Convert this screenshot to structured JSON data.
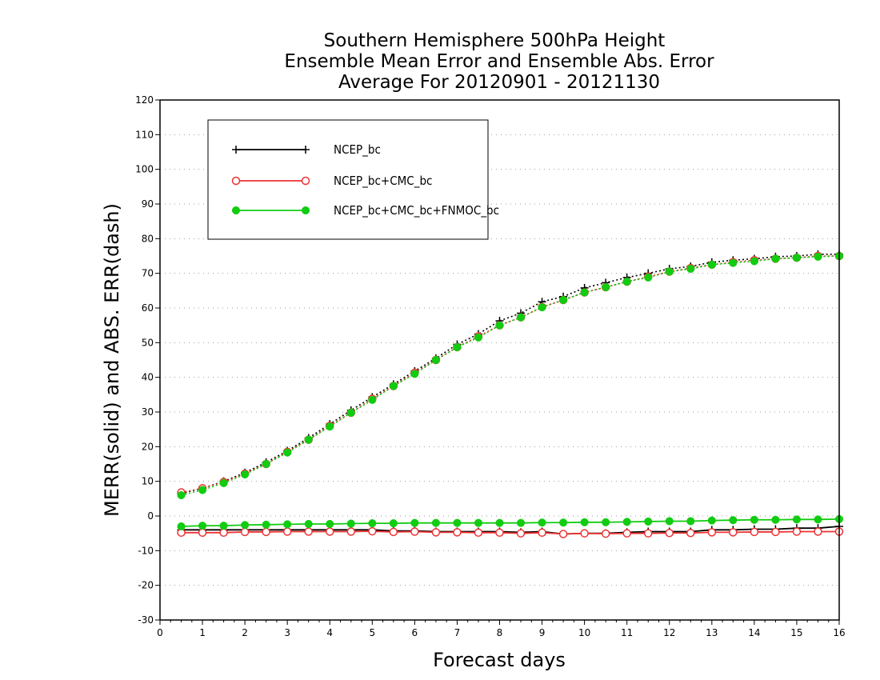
{
  "chart_data": {
    "type": "line",
    "title": [
      "Southern Hemisphere 500hPa Height",
      "Ensemble Mean Error and Ensemble Abs. Error",
      "Average For 20120901 - 20121130"
    ],
    "xlabel": "Forecast days",
    "ylabel": "MERR(solid) and ABS. ERR(dash)",
    "xlim": [
      0,
      16
    ],
    "ylim": [
      -30,
      120
    ],
    "x_ticks": [
      0,
      1,
      2,
      3,
      4,
      5,
      6,
      7,
      8,
      9,
      10,
      11,
      12,
      13,
      14,
      15,
      16
    ],
    "y_ticks": [
      -30,
      -20,
      -10,
      0,
      10,
      20,
      30,
      40,
      50,
      60,
      70,
      80,
      90,
      100,
      110,
      120
    ],
    "grid": "dotted-horizontal",
    "legend_position": "top-left",
    "x": [
      0.5,
      1,
      1.5,
      2,
      2.5,
      3,
      3.5,
      4,
      4.5,
      5,
      5.5,
      6,
      6.5,
      7,
      7.5,
      8,
      8.5,
      9,
      9.5,
      10,
      10.5,
      11,
      11.5,
      12,
      12.5,
      13,
      13.5,
      14,
      14.5,
      15,
      15.5,
      16
    ],
    "series": [
      {
        "name": "NCEP_bc",
        "color": "#000000",
        "marker": "plus",
        "abs_err": [
          6.5,
          8.0,
          10.0,
          12.5,
          15.5,
          18.8,
          22.5,
          26.5,
          30.5,
          34.3,
          38.0,
          41.8,
          45.5,
          49.5,
          52.5,
          56.3,
          58.5,
          61.8,
          63.3,
          65.8,
          67.3,
          68.8,
          70.0,
          71.3,
          72.0,
          73.2,
          73.8,
          74.2,
          74.8,
          75.0,
          75.5,
          75.5
        ],
        "mean_err": [
          -4.0,
          -4.0,
          -4.0,
          -4.0,
          -4.0,
          -4.0,
          -4.0,
          -4.0,
          -4.0,
          -4.0,
          -4.3,
          -4.3,
          -4.5,
          -4.5,
          -4.5,
          -4.5,
          -4.7,
          -4.5,
          -5.2,
          -5.0,
          -5.0,
          -4.7,
          -4.5,
          -4.5,
          -4.5,
          -4.0,
          -4.0,
          -3.8,
          -3.8,
          -3.5,
          -3.5,
          -3.0
        ]
      },
      {
        "name": "NCEP_bc+CMC_bc",
        "color": "#ee3333",
        "marker": "open-circle",
        "abs_err": [
          6.8,
          8.0,
          9.8,
          12.2,
          15.0,
          18.5,
          22.0,
          26.0,
          29.8,
          33.8,
          37.5,
          41.3,
          45.0,
          48.7,
          51.8,
          55.0,
          57.3,
          60.3,
          62.3,
          64.5,
          66.0,
          67.6,
          69.0,
          70.5,
          71.5,
          72.5,
          73.2,
          73.8,
          74.2,
          74.5,
          75.0,
          75.0
        ],
        "mean_err": [
          -4.8,
          -4.8,
          -4.8,
          -4.6,
          -4.6,
          -4.5,
          -4.5,
          -4.5,
          -4.5,
          -4.4,
          -4.6,
          -4.5,
          -4.7,
          -4.7,
          -4.8,
          -4.8,
          -5.0,
          -4.8,
          -5.2,
          -5.0,
          -5.1,
          -5.0,
          -5.0,
          -4.9,
          -4.9,
          -4.7,
          -4.7,
          -4.6,
          -4.6,
          -4.5,
          -4.5,
          -4.5
        ]
      },
      {
        "name": "NCEP_bc+CMC_bc+FNMOC_bc",
        "color": "#11cc11",
        "marker": "filled-circle",
        "abs_err": [
          6.0,
          7.5,
          9.5,
          12.0,
          15.0,
          18.3,
          22.0,
          25.8,
          29.8,
          33.5,
          37.5,
          41.0,
          45.0,
          48.7,
          51.5,
          55.0,
          57.3,
          60.2,
          62.3,
          64.5,
          66.0,
          67.6,
          68.8,
          70.5,
          71.3,
          72.5,
          73.0,
          73.5,
          74.2,
          74.5,
          74.8,
          75.0
        ],
        "mean_err": [
          -3.0,
          -2.8,
          -2.8,
          -2.6,
          -2.5,
          -2.4,
          -2.3,
          -2.3,
          -2.2,
          -2.1,
          -2.1,
          -2.0,
          -2.0,
          -2.0,
          -2.0,
          -2.0,
          -2.0,
          -1.9,
          -1.9,
          -1.8,
          -1.8,
          -1.7,
          -1.6,
          -1.5,
          -1.5,
          -1.3,
          -1.2,
          -1.1,
          -1.1,
          -1.0,
          -1.0,
          -0.9
        ]
      }
    ]
  }
}
